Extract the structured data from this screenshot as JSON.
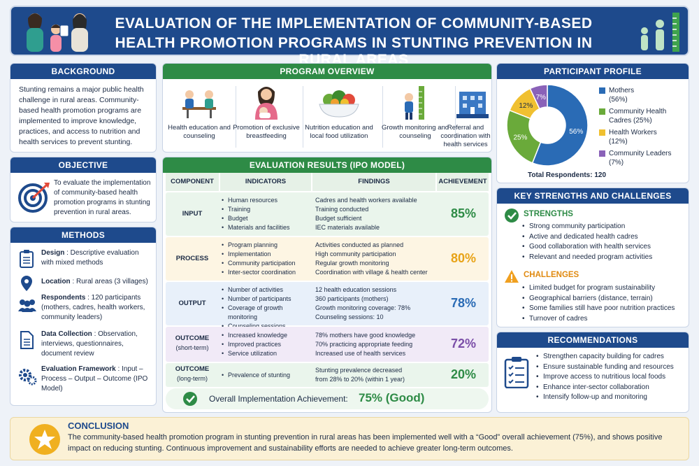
{
  "title": {
    "line1": "EVALUATION OF THE IMPLEMENTATION OF COMMUNITY-BASED",
    "line2": "HEALTH PROMOTION PROGRAMS IN STUNTING PREVENTION IN RURAL AREAS"
  },
  "background": {
    "header": "BACKGROUND",
    "text": "Stunting remains a major public health challenge in rural areas. Community-based health promotion programs are implemented to improve knowledge, practices, and access to nutrition and health services to prevent stunting."
  },
  "objective": {
    "header": "OBJECTIVE",
    "text": "To evaluate the implementation of community-based health promotion programs in stunting prevention in rural areas."
  },
  "methods": {
    "header": "METHODS",
    "design_label": "Design",
    "design_value": ": Descriptive evaluation with mixed methods",
    "location_label": "Location",
    "location_value": ": Rural areas (3 villages)",
    "respondents_label": "Respondents",
    "respondents_value": ": 120 participants (mothers, cadres, health workers, community leaders)",
    "data_label": "Data Collection",
    "data_value": ": Observation, interviews, questionnaires, document review",
    "framework_label": "Evaluation Framework",
    "framework_value": ": Input – Process – Output – Outcome (IPO Model)"
  },
  "program_overview": {
    "header": "PROGRAM OVERVIEW",
    "items": [
      {
        "label": "Health education and counseling"
      },
      {
        "label": "Promotion of exclusive breastfeeding"
      },
      {
        "label": "Nutrition education and local food utilization"
      },
      {
        "label": "Growth monitoring and counseling"
      },
      {
        "label": "Referral and coordination with health services"
      }
    ]
  },
  "evaluation": {
    "header": "EVALUATION RESULTS (IPO MODEL)",
    "columns": [
      "COMPONENT",
      "INDICATORS",
      "FINDINGS",
      "ACHIEVEMENT"
    ],
    "rows": [
      {
        "component": "INPUT",
        "sub": "",
        "indicators": [
          "Human resources",
          "Training",
          "Budget",
          "Materials and facilities"
        ],
        "findings": [
          "Cadres and health workers available",
          "Training conducted",
          "Budget sufficient",
          "IEC materials available"
        ],
        "achievement": "85%",
        "color": "#2e8b46",
        "bg": "#eaf5ec"
      },
      {
        "component": "PROCESS",
        "sub": "",
        "indicators": [
          "Program planning",
          "Implementation",
          "Community participation",
          "Inter-sector coordination"
        ],
        "findings": [
          "Activities conducted as planned",
          "High community participation",
          "Regular growth monitoring",
          "Coordination with village & health center"
        ],
        "achievement": "80%",
        "color": "#e8a317",
        "bg": "#fdf5e3"
      },
      {
        "component": "OUTPUT",
        "sub": "",
        "indicators": [
          "Number of activities",
          "Number of participants",
          "Coverage of growth monitoring",
          "Counseling sessions"
        ],
        "findings": [
          "12 health education sessions",
          "360 participants (mothers)",
          "Growth monitoring coverage: 78%",
          "Counseling sessions: 10"
        ],
        "achievement": "78%",
        "color": "#2a6bb5",
        "bg": "#e8f0fa"
      },
      {
        "component": "OUTCOME",
        "sub": "(short-term)",
        "indicators": [
          "Increased knowledge",
          "Improved practices",
          "Service utilization"
        ],
        "findings": [
          "78% mothers have good knowledge",
          "70% practicing appropriate feeding",
          "Increased use of health services"
        ],
        "achievement": "72%",
        "color": "#7b4fa8",
        "bg": "#f1eaf7"
      },
      {
        "component": "OUTCOME",
        "sub": "(long-term)",
        "indicators": [
          "Prevalence of stunting"
        ],
        "findings": [
          "Stunting prevalence decreased",
          "from 28% to 20% (within 1 year)"
        ],
        "achievement": "20%",
        "color": "#2e8b46",
        "bg": "#eaf5ec"
      }
    ],
    "overall_label": "Overall Implementation Achievement:",
    "overall_value": "75% (Good)"
  },
  "participant_profile": {
    "header": "PARTICIPANT PROFILE",
    "total": "Total Respondents: 120",
    "legend": [
      {
        "name": "Mothers",
        "pct": "(56%)",
        "color": "#2a6bb5"
      },
      {
        "name": "Community Health Cadres (25%)",
        "pct": "",
        "color": "#6aaa3a"
      },
      {
        "name": "Health Workers",
        "pct": "(12%)",
        "color": "#f0c030"
      },
      {
        "name": "Community Leaders",
        "pct": "(7%)",
        "color": "#8a62b8"
      }
    ],
    "slice_labels": [
      "56%",
      "25%",
      "12%",
      "7%"
    ]
  },
  "chart_data": {
    "type": "pie",
    "categories": [
      "Mothers",
      "Community Health Cadres",
      "Health Workers",
      "Community Leaders"
    ],
    "values": [
      56,
      25,
      12,
      7
    ],
    "colors": [
      "#2a6bb5",
      "#6aaa3a",
      "#f0c030",
      "#8a62b8"
    ]
  },
  "strengths": {
    "header": "KEY STRENGTHS AND CHALLENGES",
    "strengths_title": "STRENGTHS",
    "strengths": [
      "Strong community participation",
      "Active and dedicated health cadres",
      "Good collaboration with health services",
      "Relevant and needed program activities"
    ],
    "challenges_title": "CHALLENGES",
    "challenges": [
      "Limited budget for program sustainability",
      "Geographical barriers (distance, terrain)",
      "Some families still have poor nutrition practices",
      "Turnover of cadres"
    ]
  },
  "recommendations": {
    "header": "RECOMMENDATIONS",
    "items": [
      "Strengthen capacity building for cadres",
      "Ensure sustainable funding and resources",
      "Improve access to nutritious local foods",
      "Enhance inter-sector collaboration",
      "Intensify follow-up and monitoring"
    ]
  },
  "conclusion": {
    "title": "CONCLUSION",
    "text": "The community-based health promotion program in stunting prevention in rural areas has been implemented well with a “Good” overall achievement (75%), and shows positive impact on reducing stunting. Continuous improvement and sustainability efforts are needed to achieve greater long-term outcomes."
  }
}
